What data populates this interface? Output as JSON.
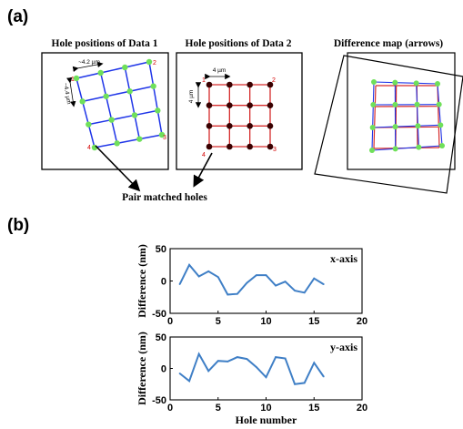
{
  "panel_a": {
    "label": "(a)",
    "title1": "Hole positions of Data 1",
    "title2": "Hole positions of Data 2",
    "title3": "Difference map (arrows)",
    "d1_spacing_h": "~4.2 µm",
    "d1_spacing_v": "~4.4 µm",
    "d2_spacing_h": "4 µm",
    "d2_spacing_v": "4 µm",
    "corner_numbers": [
      "1",
      "2",
      "3",
      "4"
    ],
    "pair_label": "Pair matched holes"
  },
  "panel_b": {
    "label": "(b)"
  },
  "colors": {
    "grid1": "#1f35e8",
    "grid2": "#d62b2b",
    "hole1": "#6fe05a",
    "hole2": "#3a0000",
    "line": "#3f7fc6",
    "corner_label": "#d40000"
  },
  "chart_data": [
    {
      "type": "line",
      "series_label": "x-axis",
      "xlabel": "",
      "ylabel": "Difference (nm)",
      "xlim": [
        0,
        20
      ],
      "ylim": [
        -50,
        50
      ],
      "xticks": [
        0,
        5,
        10,
        15,
        20
      ],
      "yticks": [
        50,
        0,
        -50
      ],
      "x": [
        1,
        2,
        3,
        4,
        5,
        6,
        7,
        8,
        9,
        10,
        11,
        12,
        13,
        14,
        15,
        16
      ],
      "values": [
        -5,
        25,
        7,
        15,
        6,
        -21,
        -20,
        -3,
        9,
        9,
        -7,
        -1,
        -15,
        -18,
        4,
        -5
      ]
    },
    {
      "type": "line",
      "series_label": "y-axis",
      "xlabel": "Hole number",
      "ylabel": "Difference (nm)",
      "xlim": [
        0,
        20
      ],
      "ylim": [
        -50,
        50
      ],
      "xticks": [
        0,
        5,
        10,
        15,
        20
      ],
      "yticks": [
        50,
        0,
        -50
      ],
      "x": [
        1,
        2,
        3,
        4,
        5,
        6,
        7,
        8,
        9,
        10,
        11,
        12,
        13,
        14,
        15,
        16
      ],
      "values": [
        -8,
        -20,
        23,
        -4,
        12,
        11,
        18,
        15,
        2,
        -14,
        18,
        16,
        -25,
        -23,
        9,
        -13
      ]
    }
  ]
}
